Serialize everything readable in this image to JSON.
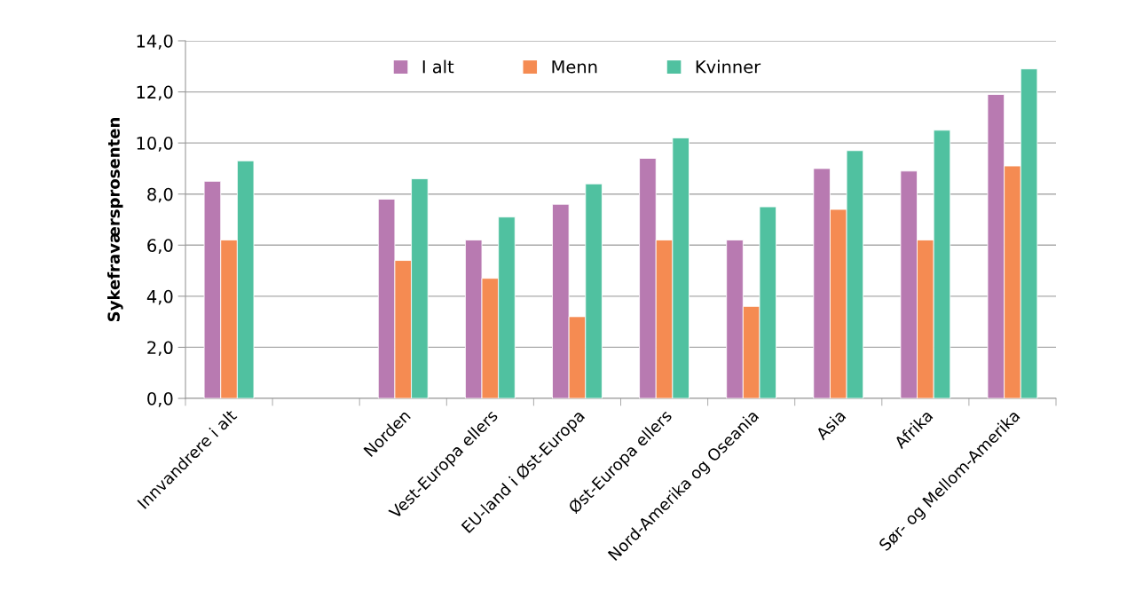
{
  "chart_data": {
    "type": "bar",
    "ylabel": "Sykefraværsprosenten",
    "categories": [
      "Innvandrere i alt",
      null,
      "Norden",
      "Vest-Europa ellers",
      "EU-land i Øst-Europa",
      "Øst-Europa ellers",
      "Nord-Amerika og Oseania",
      "Asia",
      "Afrika",
      "Sør- og Mellom-Amerika"
    ],
    "series": [
      {
        "name": "I alt",
        "color": "#b87ab1",
        "values": [
          8.5,
          null,
          7.8,
          6.2,
          7.6,
          9.4,
          6.2,
          9.0,
          8.9,
          11.9
        ]
      },
      {
        "name": "Menn",
        "color": "#f58b52",
        "values": [
          6.2,
          null,
          5.4,
          4.7,
          3.2,
          6.2,
          3.6,
          7.4,
          6.2,
          9.1
        ]
      },
      {
        "name": "Kvinner",
        "color": "#50c1a0",
        "values": [
          9.3,
          null,
          8.6,
          7.1,
          8.4,
          10.2,
          7.5,
          9.7,
          10.5,
          12.9
        ]
      }
    ],
    "ylim": [
      0,
      14
    ],
    "yticks": [
      {
        "value": 0,
        "label": "0,0"
      },
      {
        "value": 2,
        "label": "2,0"
      },
      {
        "value": 4,
        "label": "4,0"
      },
      {
        "value": 6,
        "label": "6,0"
      },
      {
        "value": 8,
        "label": "8,0"
      },
      {
        "value": 10,
        "label": "10,0"
      },
      {
        "value": 12,
        "label": "12,0"
      },
      {
        "value": 14,
        "label": "14,0"
      }
    ],
    "grid": "y",
    "legend": "top"
  }
}
